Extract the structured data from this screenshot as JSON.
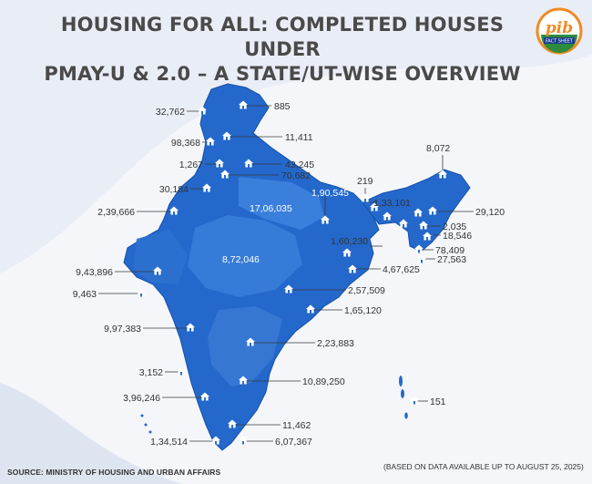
{
  "title_line1": "HOUSING FOR ALL: COMPLETED HOUSES UNDER",
  "title_line2": "PMAY-U & 2.0 – A STATE/UT-WISE OVERVIEW",
  "logo": {
    "text": "pib",
    "subtext": "FACT SHEET"
  },
  "source": "SOURCE: MINISTRY OF HOUSING AND URBAN AFFAIRS",
  "note": "(BASED ON DATA AVAILABLE UP TO AUGUST 25, 2025)",
  "icon": "house-icon",
  "colors": {
    "map_dark": "#1a5fc0",
    "map_light": "#4d8ee0",
    "pin_line": "#444444",
    "title": "#4a4a4a"
  },
  "labels": {
    "l_32762": "32,762",
    "l_885": "885",
    "l_11411": "11,411",
    "l_98368": "98,368",
    "l_1267": "1,267",
    "l_43245": "43,245",
    "l_70682": "70,682",
    "l_30184": "30,184",
    "l_8072": "8,072",
    "l_219": "219",
    "l_190545": "1,90,545",
    "l_133101": "1,33,101",
    "l_1706035": "17,06,035",
    "l_239666": "2,39,666",
    "l_29120": "29,120",
    "l_2035": "2,035",
    "l_18546": "18,546",
    "l_160230": "1,60,230",
    "l_78409": "78,409",
    "l_27563": "27,563",
    "l_872046": "8,72,046",
    "l_467625": "4,67,625",
    "l_943896": "9,43,896",
    "l_9463": "9,463",
    "l_257509": "2,57,509",
    "l_165120": "1,65,120",
    "l_997383": "9,97,383",
    "l_223883": "2,23,883",
    "l_3152": "3,152",
    "l_1089250": "10,89,250",
    "l_396246": "3,96,246",
    "l_151": "151",
    "l_11462": "11,462",
    "l_134514": "1,34,514",
    "l_607367": "6,07,367"
  }
}
